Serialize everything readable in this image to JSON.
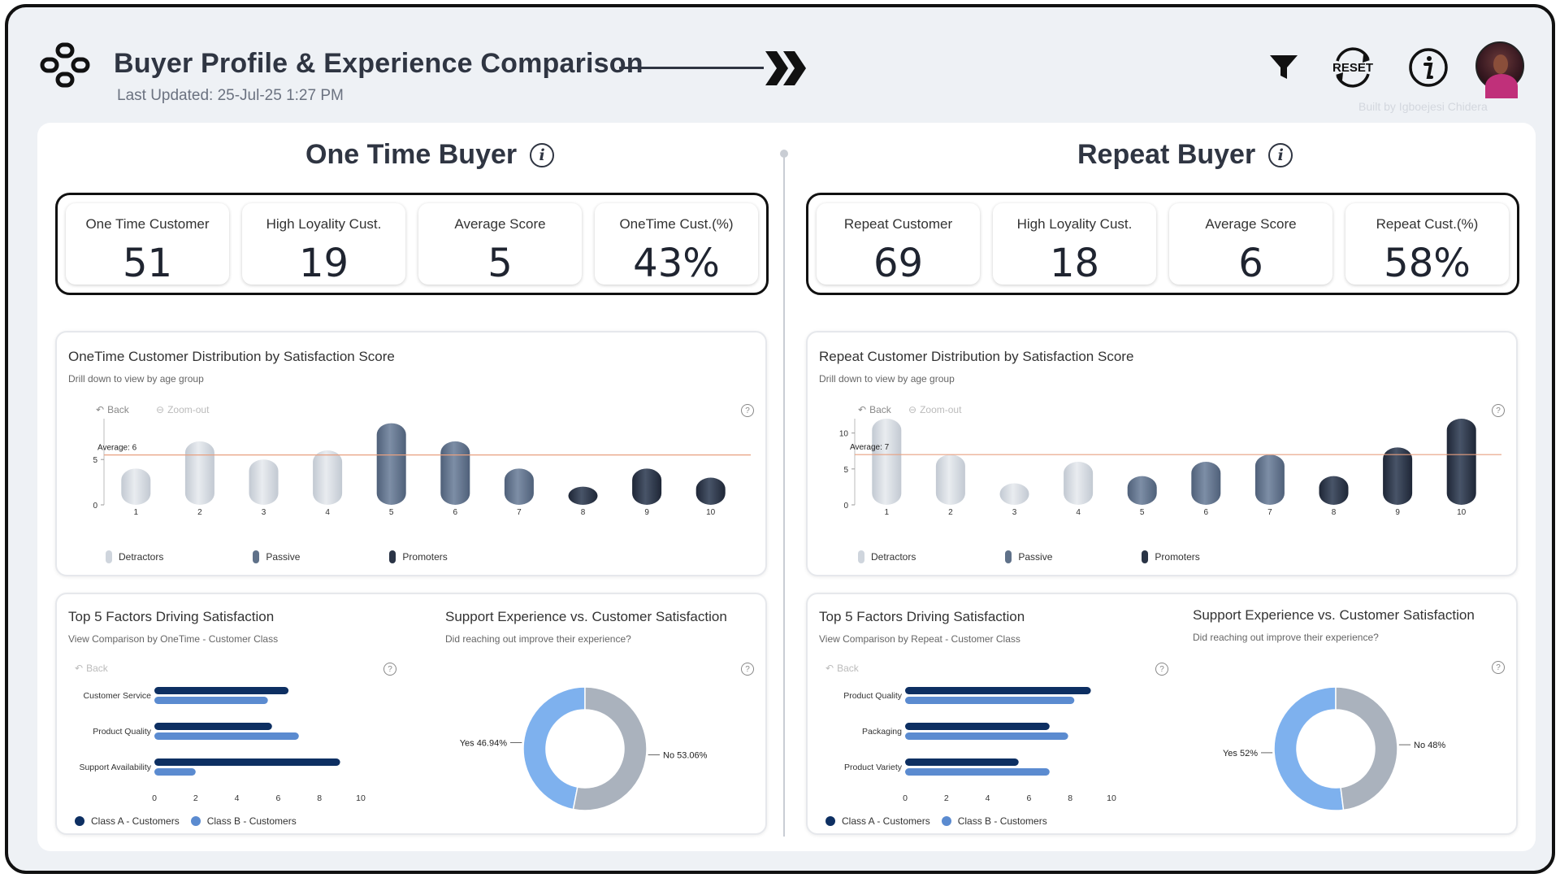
{
  "header": {
    "title": "Buyer Profile & Experience Comparison",
    "last_updated": "Last Updated: 25-Jul-25 1:27 PM",
    "reset_label": "RESET",
    "built_by": "Built by Igboejesi Chidera"
  },
  "one_time": {
    "title": "One Time Buyer",
    "kpis": [
      {
        "label": "One Time Customer",
        "value": "51"
      },
      {
        "label": "High Loyality Cust.",
        "value": "19"
      },
      {
        "label": "Average Score",
        "value": "5"
      },
      {
        "label": "OneTime Cust.(%)",
        "value": "43%"
      }
    ],
    "dist": {
      "title": "OneTime Customer Distribution by Satisfaction Score",
      "subtitle": "Drill down to view by age group",
      "back": "Back",
      "zoom": "Zoom-out",
      "average_label": "Average: 6"
    },
    "factors": {
      "title": "Top 5 Factors Driving Satisfaction",
      "subtitle": "View Comparison by OneTime - Customer Class",
      "back": "Back"
    },
    "support": {
      "title": "Support Experience vs. Customer Satisfaction",
      "subtitle": "Did reaching out improve their experience?"
    }
  },
  "repeat": {
    "title": "Repeat Buyer",
    "kpis": [
      {
        "label": "Repeat Customer",
        "value": "69"
      },
      {
        "label": "High Loyality Cust.",
        "value": "18"
      },
      {
        "label": "Average Score",
        "value": "6"
      },
      {
        "label": "Repeat Cust.(%)",
        "value": "58%"
      }
    ],
    "dist": {
      "title": "Repeat Customer Distribution by Satisfaction Score",
      "subtitle": "Drill down to view by age group",
      "back": "Back",
      "zoom": "Zoom-out",
      "average_label": "Average: 7"
    },
    "factors": {
      "title": "Top 5 Factors Driving Satisfaction",
      "subtitle": "View Comparison by Repeat - Customer Class",
      "back": "Back"
    },
    "support": {
      "title": "Support Experience vs. Customer Satisfaction",
      "subtitle": "Did reaching out improve their experience?"
    }
  },
  "legend_dist": [
    "Detractors",
    "Passive",
    "Promoters"
  ],
  "legend_factors": [
    "Class A - Customers",
    "Class B - Customers"
  ],
  "colors": {
    "detractors": "#cfd5dd",
    "passive": "#5f7189",
    "promoters": "#2a3446",
    "class_a": "#0d2f62",
    "class_b": "#5b8bd0",
    "donut_yes": "#7eb1ee",
    "donut_no": "#aab2bd",
    "average_line": "#e8a080"
  },
  "chart_data": [
    {
      "id": "onetime_dist",
      "type": "bar",
      "title": "OneTime Customer Distribution by Satisfaction Score",
      "categories": [
        "1",
        "2",
        "3",
        "4",
        "5",
        "6",
        "7",
        "8",
        "9",
        "10"
      ],
      "values": [
        4,
        7,
        5,
        6,
        9,
        7,
        4,
        2,
        4,
        3
      ],
      "groups": [
        "Detractors",
        "Detractors",
        "Detractors",
        "Detractors",
        "Passive",
        "Passive",
        "Passive",
        "Promoters",
        "Promoters",
        "Promoters"
      ],
      "average": 5.5,
      "yticks": [
        0,
        5
      ],
      "ylim": [
        0,
        9.5
      ],
      "legend": "bottom"
    },
    {
      "id": "repeat_dist",
      "type": "bar",
      "title": "Repeat Customer Distribution by Satisfaction Score",
      "categories": [
        "1",
        "2",
        "3",
        "4",
        "5",
        "6",
        "7",
        "8",
        "9",
        "10"
      ],
      "values": [
        12,
        7,
        3,
        6,
        4,
        6,
        7,
        4,
        8,
        12
      ],
      "groups": [
        "Detractors",
        "Detractors",
        "Detractors",
        "Detractors",
        "Passive",
        "Passive",
        "Passive",
        "Promoters",
        "Promoters",
        "Promoters"
      ],
      "average": 7,
      "yticks": [
        0,
        5,
        10
      ],
      "ylim": [
        0,
        12
      ],
      "legend": "bottom"
    },
    {
      "id": "onetime_factors",
      "type": "bar",
      "orientation": "horizontal",
      "title": "Top 5 Factors Driving Satisfaction",
      "categories": [
        "Customer Service",
        "Product Quality",
        "Support Availability"
      ],
      "series": [
        {
          "name": "Class A - Customers",
          "values": [
            6.5,
            5.7,
            9
          ]
        },
        {
          "name": "Class B - Customers",
          "values": [
            5.5,
            7,
            2
          ]
        }
      ],
      "xticks": [
        0,
        2,
        4,
        6,
        8,
        10
      ],
      "xlim": [
        0,
        10
      ],
      "legend": "bottom"
    },
    {
      "id": "repeat_factors",
      "type": "bar",
      "orientation": "horizontal",
      "title": "Top 5 Factors Driving Satisfaction",
      "categories": [
        "Product Quality",
        "Packaging",
        "Product Variety"
      ],
      "series": [
        {
          "name": "Class A - Customers",
          "values": [
            9,
            7,
            5.5
          ]
        },
        {
          "name": "Class B - Customers",
          "values": [
            8.2,
            7.9,
            7
          ]
        }
      ],
      "xticks": [
        0,
        2,
        4,
        6,
        8,
        10
      ],
      "xlim": [
        0,
        10
      ],
      "legend": "bottom"
    },
    {
      "id": "onetime_support",
      "type": "pie",
      "title": "Support Experience vs. Customer Satisfaction",
      "slices": [
        {
          "label": "Yes 46.94%",
          "value": 46.94,
          "color": "#7eb1ee"
        },
        {
          "label": "No 53.06%",
          "value": 53.06,
          "color": "#aab2bd"
        }
      ]
    },
    {
      "id": "repeat_support",
      "type": "pie",
      "title": "Support Experience vs. Customer Satisfaction",
      "slices": [
        {
          "label": "Yes 52%",
          "value": 52,
          "color": "#7eb1ee"
        },
        {
          "label": "No 48%",
          "value": 48,
          "color": "#aab2bd"
        }
      ]
    }
  ]
}
